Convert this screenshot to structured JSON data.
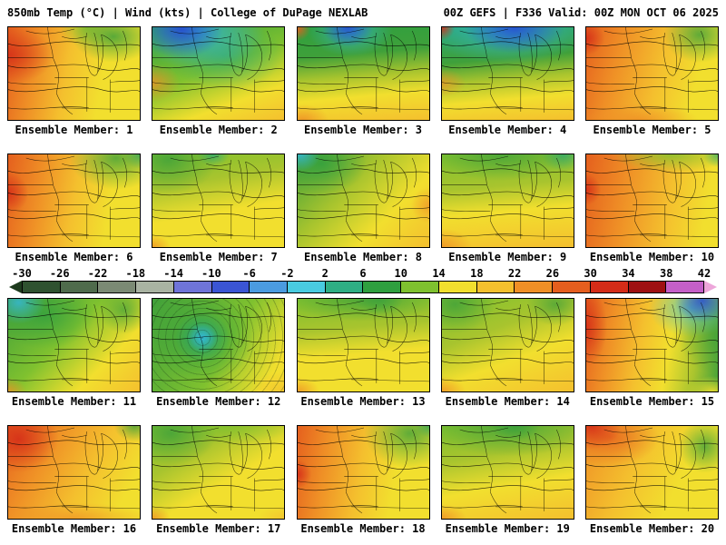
{
  "header": {
    "left": "850mb Temp (°C) | Wind (kts) | College of DuPage NEXLAB",
    "right": "00Z GEFS | F336 Valid: 00Z MON OCT 06 2025"
  },
  "panels": [
    {
      "label": "Ensemble Member: 1"
    },
    {
      "label": "Ensemble Member: 2"
    },
    {
      "label": "Ensemble Member: 3"
    },
    {
      "label": "Ensemble Member: 4"
    },
    {
      "label": "Ensemble Member: 5"
    },
    {
      "label": "Ensemble Member: 6"
    },
    {
      "label": "Ensemble Member: 7"
    },
    {
      "label": "Ensemble Member: 8"
    },
    {
      "label": "Ensemble Member: 9"
    },
    {
      "label": "Ensemble Member: 10"
    },
    {
      "label": "Ensemble Member: 11"
    },
    {
      "label": "Ensemble Member: 12"
    },
    {
      "label": "Ensemble Member: 13"
    },
    {
      "label": "Ensemble Member: 14"
    },
    {
      "label": "Ensemble Member: 15"
    },
    {
      "label": "Ensemble Member: 16"
    },
    {
      "label": "Ensemble Member: 17"
    },
    {
      "label": "Ensemble Member: 18"
    },
    {
      "label": "Ensemble Member: 19"
    },
    {
      "label": "Ensemble Member: 20"
    }
  ],
  "colorbar": {
    "tick_labels": [
      "-30",
      "-26",
      "-22",
      "-18",
      "-14",
      "-10",
      "-6",
      "-2",
      "2",
      "6",
      "10",
      "14",
      "18",
      "22",
      "26",
      "30",
      "34",
      "38",
      "42"
    ],
    "colors": [
      "#1d3a1d",
      "#2f5230",
      "#4f6b4c",
      "#7b8a74",
      "#a9b3a2",
      "#6f74d8",
      "#3b55d4",
      "#4b9be0",
      "#49cbe0",
      "#2fae84",
      "#2f9f3f",
      "#7fc12f",
      "#f2df2e",
      "#f4c02e",
      "#ef8f26",
      "#e55e1e",
      "#d42c18",
      "#9e1012",
      "#c45fc8",
      "#eda6da"
    ]
  }
}
